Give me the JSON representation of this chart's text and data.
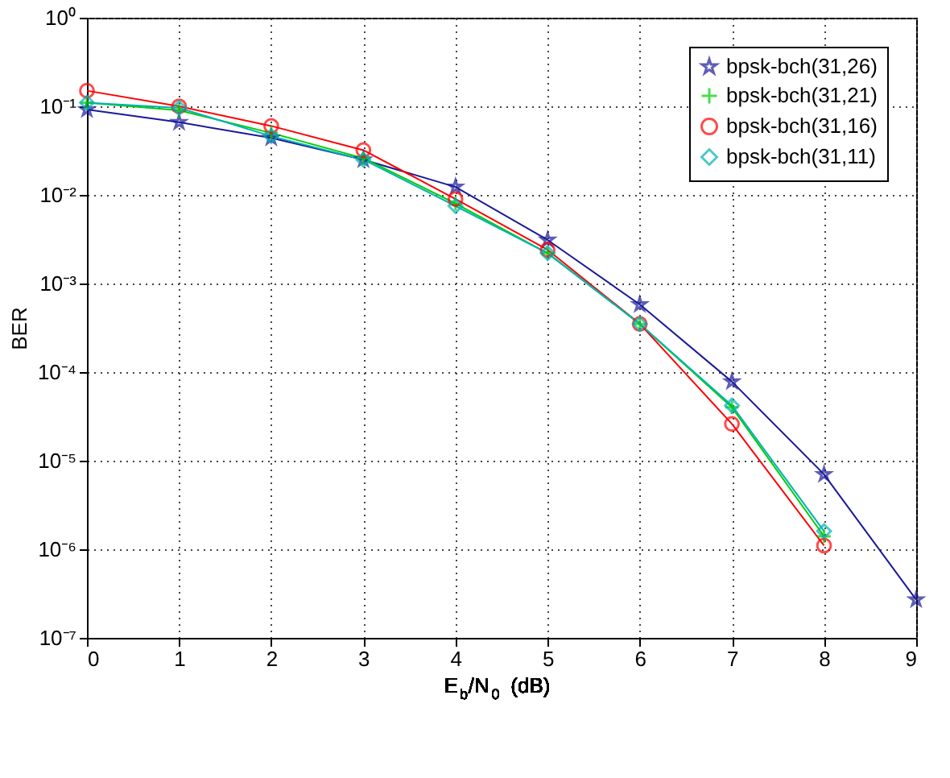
{
  "chart_data": {
    "type": "line",
    "xlabel": "E$_{b}$/N$_{0}$ (dB)",
    "ylabel": "BER",
    "log": "y",
    "grid": true,
    "legend": "top right",
    "line_style": "solid",
    "x": [
      0,
      1,
      2,
      3,
      4,
      5,
      6,
      7,
      8,
      9
    ],
    "xlim": [
      0,
      9
    ],
    "xticks": [
      0,
      1,
      2,
      3,
      4,
      5,
      6,
      7,
      8,
      9
    ],
    "ylim": [
      1e-07,
      1
    ],
    "yticks": [
      {
        "value": 1,
        "label": "10⁰"
      },
      {
        "value": 0.1,
        "label": "10⁻¹"
      },
      {
        "value": 0.01,
        "label": "10⁻²"
      },
      {
        "value": 0.001,
        "label": "10⁻³"
      },
      {
        "value": 0.0001,
        "label": "10⁻⁴"
      },
      {
        "value": 1e-05,
        "label": "10⁻⁵"
      },
      {
        "value": 1e-06,
        "label": "10⁻⁶"
      },
      {
        "value": 1e-07,
        "label": "10⁻⁷"
      }
    ],
    "series": [
      {
        "name": "bpsk-bch(31,26)",
        "color": "#1a1a99",
        "marker": "star",
        "values": [
          0.092,
          0.066,
          0.044,
          0.025,
          0.0123,
          0.0031,
          0.00058,
          7.8e-05,
          7e-06,
          2.7e-07
        ]
      },
      {
        "name": "bpsk-bch(31,21)",
        "color": "#00cc00",
        "marker": "cross",
        "values": [
          0.11,
          0.09,
          0.05,
          0.026,
          0.008,
          0.0022,
          0.00035,
          4e-05,
          1.4e-06,
          null
        ]
      },
      {
        "name": "bpsk-bch(31,16)",
        "color": "#ff0000",
        "marker": "circle",
        "values": [
          0.15,
          0.1,
          0.06,
          0.032,
          0.009,
          0.0024,
          0.00035,
          2.6e-05,
          1.1e-06,
          null
        ]
      },
      {
        "name": "bpsk-bch(31,11)",
        "color": "#00b3b3",
        "marker": "diamond",
        "values": [
          0.11,
          0.096,
          0.046,
          0.025,
          0.0075,
          0.0022,
          0.00035,
          4.2e-05,
          1.6e-06,
          null
        ]
      }
    ]
  }
}
